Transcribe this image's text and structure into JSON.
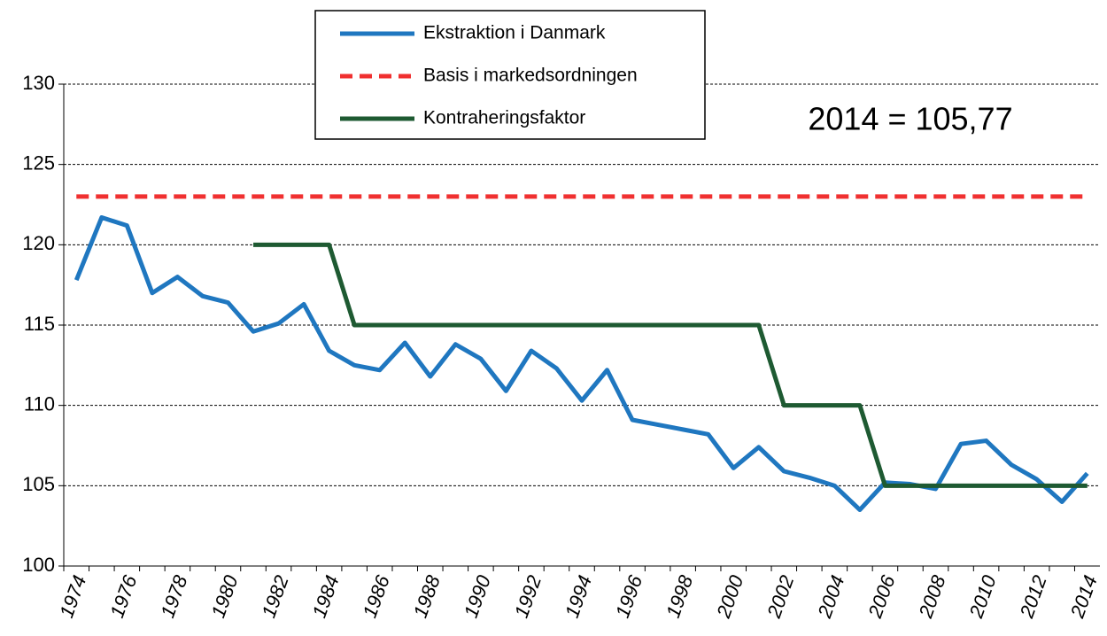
{
  "chart_data": {
    "type": "line",
    "annotation": "2014 = 105,77",
    "categories": [
      "1974",
      null,
      "1976",
      null,
      "1978",
      null,
      "1980",
      null,
      "1982",
      null,
      "1984",
      null,
      "1986",
      null,
      "1988",
      null,
      "1990",
      null,
      "1992",
      null,
      "1994",
      null,
      "1996",
      null,
      "1998",
      null,
      "2000",
      null,
      "2002",
      null,
      "2004",
      null,
      "2006",
      null,
      "2008",
      null,
      "2010",
      null,
      "2012",
      null,
      "2014"
    ],
    "series": [
      {
        "name": "Ekstraktion i Danmark",
        "color": "#1f77c0",
        "line_style": "solid",
        "values": [
          117.8,
          121.7,
          121.2,
          117.0,
          118.0,
          116.8,
          116.4,
          114.6,
          115.1,
          116.3,
          113.4,
          112.5,
          112.2,
          113.9,
          111.8,
          113.8,
          112.9,
          110.9,
          113.4,
          112.3,
          110.3,
          112.2,
          109.1,
          108.8,
          108.5,
          108.2,
          106.1,
          107.4,
          105.9,
          105.5,
          105.0,
          103.5,
          105.2,
          105.1,
          104.8,
          107.6,
          107.8,
          106.3,
          105.4,
          104.0,
          105.77
        ]
      },
      {
        "name": "Basis i markedsordningen",
        "color": "#f03030",
        "line_style": "dashed",
        "values": [
          123,
          123,
          123,
          123,
          123,
          123,
          123,
          123,
          123,
          123,
          123,
          123,
          123,
          123,
          123,
          123,
          123,
          123,
          123,
          123,
          123,
          123,
          123,
          123,
          123,
          123,
          123,
          123,
          123,
          123,
          123,
          123,
          123,
          123,
          123,
          123,
          123,
          123,
          123,
          123,
          123
        ]
      },
      {
        "name": "Kontraheringsfaktor",
        "color": "#1e5a32",
        "line_style": "solid",
        "values": [
          null,
          null,
          null,
          null,
          null,
          null,
          null,
          120,
          120,
          120,
          120,
          115,
          115,
          115,
          115,
          115,
          115,
          115,
          115,
          115,
          115,
          115,
          115,
          115,
          115,
          115,
          115,
          115,
          110,
          110,
          110,
          110,
          105,
          105,
          105,
          105,
          105,
          105,
          105,
          105,
          105
        ]
      }
    ],
    "ylim": [
      100,
      130
    ],
    "yticks": [
      100,
      105,
      110,
      115,
      120,
      125,
      130
    ],
    "grid": true,
    "legend": "top-center"
  }
}
